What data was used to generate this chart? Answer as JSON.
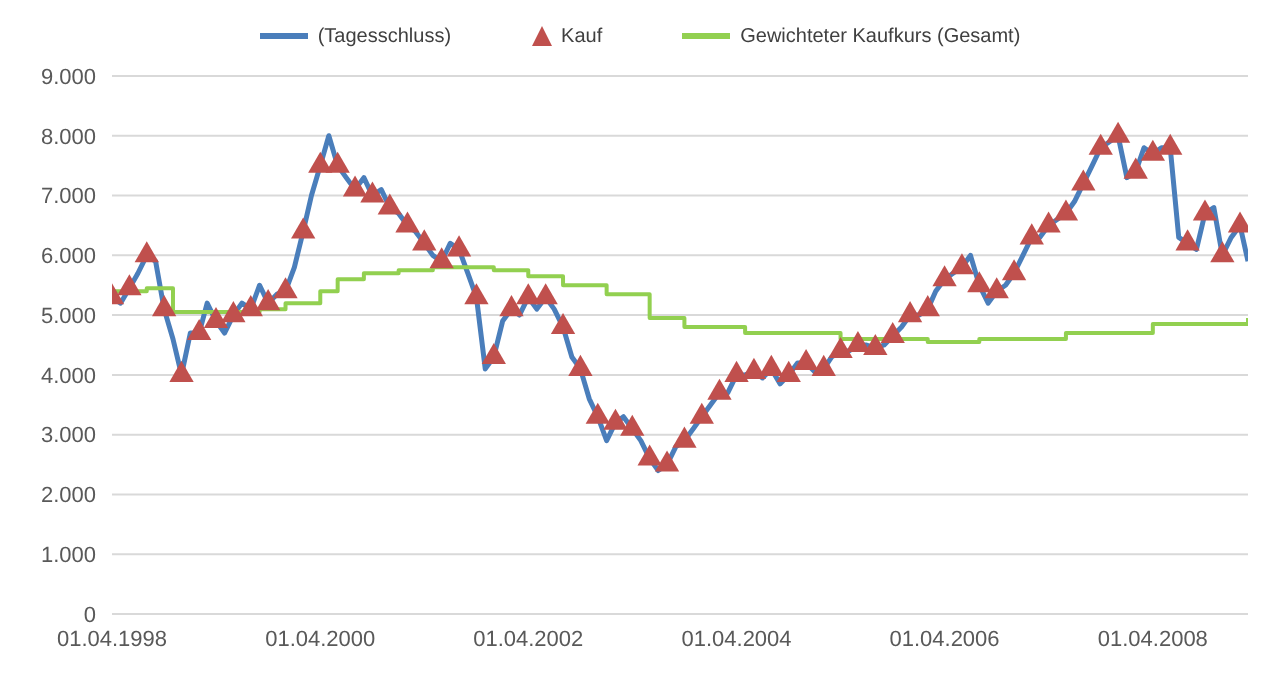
{
  "chart_data": {
    "type": "line",
    "legend": "top",
    "grid": "y",
    "x": [
      "1998-04",
      "1998-05",
      "1998-06",
      "1998-07",
      "1998-08",
      "1998-09",
      "1998-10",
      "1998-11",
      "1998-12",
      "1999-01",
      "1999-02",
      "1999-03",
      "1999-04",
      "1999-05",
      "1999-06",
      "1999-07",
      "1999-08",
      "1999-09",
      "1999-10",
      "1999-11",
      "1999-12",
      "2000-01",
      "2000-02",
      "2000-03",
      "2000-04",
      "2000-05",
      "2000-06",
      "2000-07",
      "2000-08",
      "2000-09",
      "2000-10",
      "2000-11",
      "2000-12",
      "2001-01",
      "2001-02",
      "2001-03",
      "2001-04",
      "2001-05",
      "2001-06",
      "2001-07",
      "2001-08",
      "2001-09",
      "2001-10",
      "2001-11",
      "2001-12",
      "2002-01",
      "2002-02",
      "2002-03",
      "2002-04",
      "2002-05",
      "2002-06",
      "2002-07",
      "2002-08",
      "2002-09",
      "2002-10",
      "2002-11",
      "2002-12",
      "2003-01",
      "2003-02",
      "2003-03",
      "2003-04",
      "2003-05",
      "2003-06",
      "2003-07",
      "2003-08",
      "2003-09",
      "2003-10",
      "2003-11",
      "2003-12",
      "2004-01",
      "2004-02",
      "2004-03",
      "2004-04",
      "2004-05",
      "2004-06",
      "2004-07",
      "2004-08",
      "2004-09",
      "2004-10",
      "2004-11",
      "2004-12",
      "2005-01",
      "2005-02",
      "2005-03",
      "2005-04",
      "2005-05",
      "2005-06",
      "2005-07",
      "2005-08",
      "2005-09",
      "2005-10",
      "2005-11",
      "2005-12",
      "2006-01",
      "2006-02",
      "2006-03",
      "2006-04",
      "2006-05",
      "2006-06",
      "2006-07",
      "2006-08",
      "2006-09",
      "2006-10",
      "2006-11",
      "2006-12",
      "2007-01",
      "2007-02",
      "2007-03",
      "2007-04",
      "2007-05",
      "2007-06",
      "2007-07",
      "2007-08",
      "2007-09",
      "2007-10",
      "2007-11",
      "2007-12",
      "2008-01",
      "2008-02",
      "2008-03",
      "2008-04",
      "2008-05",
      "2008-06",
      "2008-07",
      "2008-08",
      "2008-09",
      "2008-10",
      "2008-11",
      "2008-12",
      "2009-01",
      "2009-02",
      "2009-03"
    ],
    "xlim": [
      "1998-04-01",
      "2009-03-01"
    ],
    "xticks": [
      {
        "value": "1998-04-01",
        "label": "01.04.1998"
      },
      {
        "value": "2000-04-01",
        "label": "01.04.2000"
      },
      {
        "value": "2002-04-01",
        "label": "01.04.2002"
      },
      {
        "value": "2004-04-01",
        "label": "01.04.2004"
      },
      {
        "value": "2006-04-01",
        "label": "01.04.2006"
      },
      {
        "value": "2008-04-01",
        "label": "01.04.2008"
      }
    ],
    "ylim": [
      0,
      9000
    ],
    "yticks": [
      0,
      {
        "value": 1000,
        "label": "1.000"
      },
      {
        "value": 2000,
        "label": "2.000"
      },
      {
        "value": 3000,
        "label": "3.000"
      },
      {
        "value": 4000,
        "label": "4.000"
      },
      {
        "value": 5000,
        "label": "5.000"
      },
      {
        "value": 6000,
        "label": "6.000"
      },
      {
        "value": 7000,
        "label": "7.000"
      },
      {
        "value": 8000,
        "label": "8.000"
      },
      {
        "value": 9000,
        "label": "9.000"
      }
    ],
    "series": [
      {
        "name": "(Tagesschluss)",
        "color": "#4a7ebb",
        "values": [
          5300,
          5200,
          5450,
          5700,
          6000,
          5900,
          5100,
          4600,
          4000,
          4700,
          4700,
          5200,
          4900,
          4700,
          5000,
          5200,
          5100,
          5500,
          5200,
          5350,
          5400,
          5800,
          6400,
          7000,
          7500,
          8000,
          7500,
          7300,
          7100,
          7300,
          7000,
          7100,
          6800,
          6700,
          6500,
          6400,
          6200,
          6000,
          5900,
          6200,
          6100,
          5700,
          5300,
          4100,
          4300,
          4900,
          5100,
          5000,
          5300,
          5100,
          5300,
          5100,
          4800,
          4300,
          4100,
          3600,
          3300,
          2900,
          3200,
          3300,
          3100,
          2900,
          2600,
          2400,
          2500,
          2800,
          2900,
          3100,
          3300,
          3500,
          3700,
          3700,
          4000,
          4000,
          4050,
          3950,
          4100,
          3850,
          4000,
          4200,
          4200,
          4050,
          4100,
          4300,
          4400,
          4400,
          4500,
          4500,
          4450,
          4500,
          4650,
          4800,
          5000,
          5000,
          5100,
          5400,
          5600,
          5700,
          5800,
          6000,
          5500,
          5200,
          5400,
          5500,
          5700,
          6000,
          6300,
          6300,
          6500,
          6600,
          6700,
          6900,
          7200,
          7500,
          7800,
          7900,
          8000,
          7300,
          7400,
          7800,
          7700,
          7800,
          7800,
          6300,
          6200,
          6100,
          6700,
          6800,
          6000,
          6300,
          6500,
          5900
        ]
      },
      {
        "name": "Kauf",
        "type": "scatter",
        "marker": "triangle",
        "color": "#c0504d",
        "values": [
          5300,
          null,
          5450,
          null,
          6000,
          null,
          5100,
          null,
          4000,
          null,
          4700,
          null,
          4900,
          null,
          5000,
          null,
          5100,
          null,
          5200,
          null,
          5400,
          null,
          6400,
          null,
          7500,
          null,
          7500,
          null,
          7100,
          null,
          7000,
          null,
          6800,
          null,
          6500,
          null,
          6200,
          null,
          5900,
          null,
          6100,
          null,
          5300,
          null,
          4300,
          null,
          5100,
          null,
          5300,
          null,
          5300,
          null,
          4800,
          null,
          4100,
          null,
          3300,
          null,
          3200,
          null,
          3100,
          null,
          2600,
          null,
          2500,
          null,
          2900,
          null,
          3300,
          null,
          3700,
          null,
          4000,
          null,
          4050,
          null,
          4100,
          null,
          4000,
          null,
          4200,
          null,
          4100,
          null,
          4400,
          null,
          4500,
          null,
          4450,
          null,
          4650,
          null,
          5000,
          null,
          5100,
          null,
          5600,
          null,
          5800,
          null,
          5500,
          null,
          5400,
          null,
          5700,
          null,
          6300,
          null,
          6500,
          null,
          6700,
          null,
          7200,
          null,
          7800,
          null,
          8000,
          null,
          7400,
          null,
          7700,
          null,
          7800,
          null,
          6200,
          null,
          6700,
          null,
          6000,
          null,
          6500,
          null
        ]
      },
      {
        "name": "Gewichteter Kaufkurs (Gesamt)",
        "type": "step",
        "color": "#92d050",
        "x": [
          "1998-04",
          "1998-08",
          "1998-11",
          "1999-09",
          "1999-12",
          "2000-04",
          "2000-06",
          "2000-09",
          "2001-01",
          "2001-05",
          "2001-12",
          "2002-04",
          "2002-08",
          "2003-01",
          "2003-06",
          "2003-10",
          "2004-05",
          "2005-04",
          "2006-02",
          "2006-08",
          "2007-06",
          "2008-04",
          "2009-03"
        ],
        "values": [
          5400,
          5450,
          5050,
          5100,
          5200,
          5400,
          5600,
          5700,
          5750,
          5800,
          5750,
          5650,
          5500,
          5350,
          4950,
          4800,
          4700,
          4600,
          4550,
          4600,
          4700,
          4850,
          4950
        ]
      }
    ]
  }
}
